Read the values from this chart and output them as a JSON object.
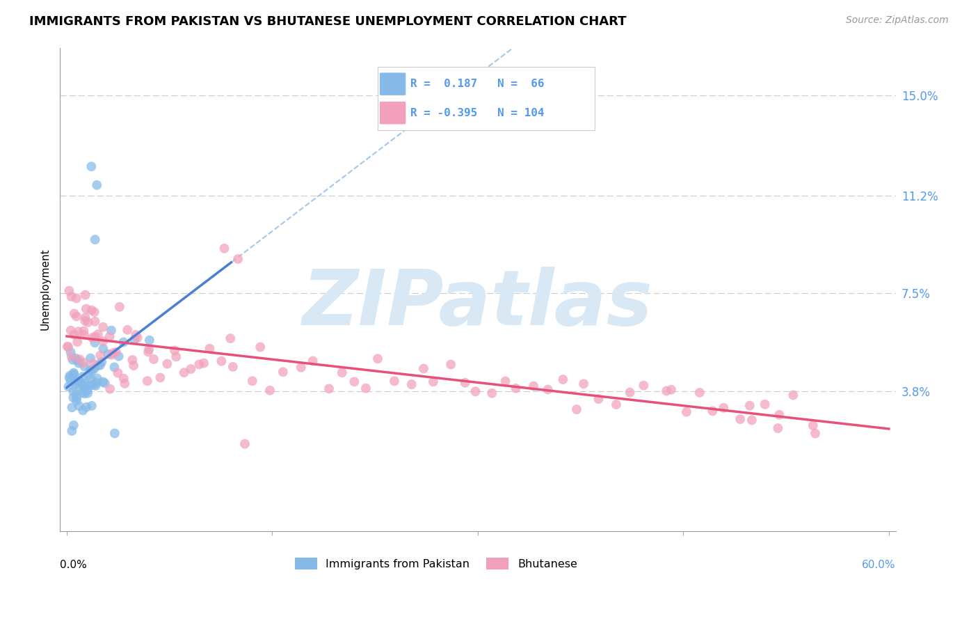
{
  "title": "IMMIGRANTS FROM PAKISTAN VS BHUTANESE UNEMPLOYMENT CORRELATION CHART",
  "source": "Source: ZipAtlas.com",
  "ylabel": "Unemployment",
  "yticks": [
    0.0,
    0.038,
    0.075,
    0.112,
    0.15
  ],
  "ytick_labels": [
    "",
    "3.8%",
    "7.5%",
    "11.2%",
    "15.0%"
  ],
  "xmin": 0.0,
  "xmax": 0.6,
  "ymin": -0.015,
  "ymax": 0.168,
  "R_pakistan": 0.187,
  "N_pakistan": 66,
  "R_bhutanese": -0.395,
  "N_bhutanese": 104,
  "color_pakistan": "#85bae8",
  "color_bhutanese": "#f2a0bb",
  "line_color_pakistan": "#4a7fd4",
  "line_color_pakistan_dash": "#90b8e0",
  "line_color_bhutanese": "#e8507a",
  "watermark_color": "#d8e8f4",
  "background_color": "#ffffff",
  "grid_color": "#cccccc",
  "legend_entry1": "Immigrants from Pakistan",
  "legend_entry2": "Bhutanese",
  "title_fontsize": 13,
  "tick_label_color": "#5599ee",
  "seed": 12345,
  "pak_x": [
    0.001,
    0.002,
    0.002,
    0.003,
    0.003,
    0.003,
    0.004,
    0.004,
    0.004,
    0.005,
    0.005,
    0.005,
    0.006,
    0.006,
    0.006,
    0.007,
    0.007,
    0.007,
    0.008,
    0.008,
    0.008,
    0.009,
    0.009,
    0.009,
    0.01,
    0.01,
    0.01,
    0.011,
    0.011,
    0.012,
    0.012,
    0.012,
    0.013,
    0.013,
    0.014,
    0.014,
    0.015,
    0.015,
    0.016,
    0.016,
    0.017,
    0.017,
    0.018,
    0.018,
    0.019,
    0.019,
    0.02,
    0.02,
    0.021,
    0.021,
    0.022,
    0.022,
    0.023,
    0.024,
    0.025,
    0.026,
    0.027,
    0.028,
    0.03,
    0.032,
    0.035,
    0.038,
    0.042,
    0.05,
    0.06,
    0.02
  ],
  "pak_y": [
    0.04,
    0.038,
    0.042,
    0.035,
    0.04,
    0.045,
    0.038,
    0.042,
    0.036,
    0.04,
    0.044,
    0.037,
    0.041,
    0.035,
    0.046,
    0.039,
    0.043,
    0.037,
    0.042,
    0.038,
    0.044,
    0.04,
    0.035,
    0.047,
    0.041,
    0.036,
    0.045,
    0.039,
    0.043,
    0.038,
    0.042,
    0.046,
    0.037,
    0.041,
    0.039,
    0.043,
    0.04,
    0.044,
    0.038,
    0.042,
    0.041,
    0.045,
    0.039,
    0.043,
    0.042,
    0.046,
    0.04,
    0.044,
    0.041,
    0.045,
    0.043,
    0.047,
    0.042,
    0.044,
    0.045,
    0.046,
    0.047,
    0.048,
    0.049,
    0.05,
    0.052,
    0.054,
    0.056,
    0.06,
    0.065,
    0.095
  ],
  "bhu_x": [
    0.001,
    0.002,
    0.003,
    0.004,
    0.005,
    0.006,
    0.007,
    0.008,
    0.009,
    0.01,
    0.011,
    0.012,
    0.013,
    0.014,
    0.015,
    0.016,
    0.017,
    0.018,
    0.019,
    0.02,
    0.022,
    0.024,
    0.026,
    0.028,
    0.03,
    0.032,
    0.034,
    0.036,
    0.038,
    0.04,
    0.042,
    0.044,
    0.046,
    0.048,
    0.05,
    0.055,
    0.06,
    0.065,
    0.07,
    0.075,
    0.08,
    0.085,
    0.09,
    0.095,
    0.1,
    0.11,
    0.12,
    0.13,
    0.14,
    0.15,
    0.16,
    0.17,
    0.18,
    0.19,
    0.2,
    0.21,
    0.22,
    0.23,
    0.24,
    0.25,
    0.26,
    0.27,
    0.28,
    0.29,
    0.3,
    0.31,
    0.32,
    0.33,
    0.34,
    0.35,
    0.36,
    0.37,
    0.38,
    0.39,
    0.4,
    0.41,
    0.42,
    0.43,
    0.44,
    0.45,
    0.46,
    0.47,
    0.48,
    0.49,
    0.5,
    0.51,
    0.52,
    0.53,
    0.54,
    0.55,
    0.002,
    0.005,
    0.008,
    0.012,
    0.02,
    0.025,
    0.015,
    0.03,
    0.04,
    0.05,
    0.06,
    0.08,
    0.1,
    0.12
  ],
  "bhu_y": [
    0.065,
    0.06,
    0.058,
    0.062,
    0.055,
    0.06,
    0.058,
    0.063,
    0.056,
    0.061,
    0.059,
    0.064,
    0.057,
    0.062,
    0.055,
    0.06,
    0.058,
    0.053,
    0.056,
    0.061,
    0.058,
    0.055,
    0.06,
    0.053,
    0.057,
    0.052,
    0.055,
    0.05,
    0.054,
    0.049,
    0.053,
    0.048,
    0.052,
    0.047,
    0.051,
    0.049,
    0.047,
    0.05,
    0.048,
    0.046,
    0.05,
    0.048,
    0.046,
    0.05,
    0.048,
    0.046,
    0.05,
    0.048,
    0.044,
    0.048,
    0.046,
    0.044,
    0.048,
    0.042,
    0.046,
    0.044,
    0.042,
    0.046,
    0.04,
    0.044,
    0.042,
    0.04,
    0.044,
    0.038,
    0.042,
    0.04,
    0.038,
    0.036,
    0.04,
    0.038,
    0.036,
    0.034,
    0.038,
    0.036,
    0.034,
    0.032,
    0.036,
    0.034,
    0.032,
    0.03,
    0.034,
    0.032,
    0.03,
    0.028,
    0.032,
    0.03,
    0.028,
    0.026,
    0.03,
    0.028,
    0.068,
    0.072,
    0.07,
    0.066,
    0.068,
    0.064,
    0.074,
    0.062,
    0.065,
    0.06,
    0.058,
    0.055,
    0.052,
    0.05
  ]
}
